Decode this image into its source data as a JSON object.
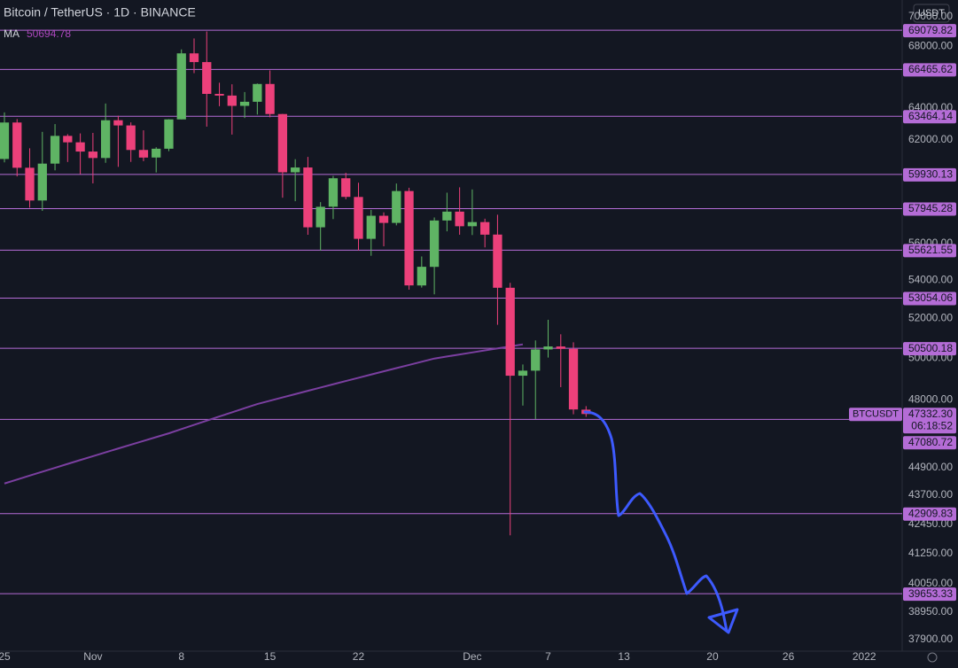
{
  "chart_data": {
    "type": "candlestick",
    "title": "Bitcoin / TetherUS · 1D · BINANCE",
    "symbol": "BTCUSDT",
    "currency": "USDT",
    "countdown": "06:18:52",
    "log_scale": true,
    "up_color": "#5fb464",
    "down_color": "#ec407a",
    "open": [
      60852,
      63078,
      60328,
      58413,
      60575,
      62253,
      61859,
      61299,
      60911,
      63220,
      62896,
      61395,
      60940,
      61470,
      63273,
      67525,
      66947,
      64882,
      64775,
      64122,
      64380,
      65519,
      63606,
      60058,
      60344,
      56891,
      58057,
      59707,
      58617,
      56247,
      57541,
      57138,
      58960,
      53723,
      54716,
      57274,
      57777,
      56951,
      57184,
      56485,
      53601,
      49153,
      49397,
      50441,
      50589,
      50471,
      47535
    ],
    "high": [
      63710,
      63293,
      61496,
      62499,
      62980,
      62359,
      62405,
      62437,
      64270,
      63500,
      63086,
      62595,
      61560,
      63286,
      67789,
      68524,
      69000,
      65600,
      65500,
      65000,
      65550,
      66401,
      63617,
      60840,
      60976,
      58320,
      59845,
      60029,
      59444,
      57875,
      57735,
      59398,
      59150,
      55280,
      57445,
      58865,
      59176,
      59053,
      57375,
      57600,
      53859,
      49699,
      50891,
      51936,
      51200,
      50797,
      47700
    ],
    "low": [
      60650,
      59817,
      58000,
      57820,
      60174,
      60673,
      59945,
      59405,
      60624,
      60382,
      60677,
      60721,
      60050,
      61322,
      63273,
      66222,
      62822,
      64100,
      62333,
      63360,
      63576,
      63400,
      58574,
      58373,
      56474,
      55600,
      57353,
      58486,
      55610,
      55317,
      55837,
      57000,
      53500,
      53610,
      53256,
      56666,
      56476,
      56459,
      55777,
      51680,
      42000,
      47727,
      47100,
      50039,
      48600,
      47320,
      47200
    ],
    "close": [
      63078,
      60328,
      58413,
      60575,
      62253,
      61859,
      61299,
      60911,
      63219,
      62896,
      61395,
      60937,
      61470,
      63273,
      67525,
      66947,
      64882,
      64774,
      64122,
      64380,
      65519,
      63606,
      60058,
      60344,
      56891,
      58052,
      59707,
      58622,
      56247,
      57541,
      57138,
      58960,
      53726,
      54721,
      57274,
      57776,
      56950,
      57184,
      56480,
      53601,
      49152,
      49397,
      50441,
      50589,
      50471,
      47545,
      47332.3
    ],
    "value_labels": {
      "last_close": "47332.30"
    },
    "ma": {
      "name": "MA",
      "color": "#7b3fa0",
      "label_color": "#ab47bc",
      "values": [
        44200,
        44372,
        44545,
        44717,
        44889,
        45062,
        45234,
        45406,
        45578,
        45751,
        45923,
        46095,
        46268,
        46440,
        46634,
        46829,
        47023,
        47217,
        47411,
        47606,
        47800,
        47956,
        48113,
        48269,
        48426,
        48582,
        48739,
        48895,
        49051,
        49208,
        49364,
        49521,
        49677,
        49834,
        49990,
        50091,
        50192,
        50292,
        50393,
        50494,
        50594,
        50694.78,
        null,
        null,
        null,
        null,
        null
      ]
    },
    "levels": [
      69079.82,
      66465.62,
      63464.14,
      59930.13,
      57945.28,
      55621.55,
      53054.06,
      50500.18,
      47080.72,
      42909.83,
      39653.33
    ],
    "level_color": "#b46cd6",
    "xlim": [
      -0.35,
      71
    ],
    "xticks": [
      {
        "value": 0,
        "label": "25"
      },
      {
        "value": 7,
        "label": "Nov"
      },
      {
        "value": 14,
        "label": "8"
      },
      {
        "value": 21,
        "label": "15"
      },
      {
        "value": 28,
        "label": "22"
      },
      {
        "value": 37,
        "label": "Dec"
      },
      {
        "value": 43,
        "label": "7"
      },
      {
        "value": 49,
        "label": "13"
      },
      {
        "value": 56,
        "label": "20"
      },
      {
        "value": 62,
        "label": "26"
      },
      {
        "value": 68,
        "label": "2022"
      }
    ],
    "ylim": [
      37470,
      71170
    ],
    "yticks": [
      {
        "value": 70000,
        "label": "70000.00"
      },
      {
        "value": 68000,
        "label": "68000.00"
      },
      {
        "value": 64000,
        "label": "64000.00"
      },
      {
        "value": 62000,
        "label": "62000.00"
      },
      {
        "value": 56000,
        "label": "56000.00"
      },
      {
        "value": 54000,
        "label": "54000.00"
      },
      {
        "value": 52000,
        "label": "52000.00"
      },
      {
        "value": 50000,
        "label": "50000.00"
      },
      {
        "value": 48000,
        "label": "48000.00"
      },
      {
        "value": 44900,
        "label": "44900.00"
      },
      {
        "value": 43700,
        "label": "43700.00"
      },
      {
        "value": 42450,
        "label": "42450.00"
      },
      {
        "value": 41250,
        "label": "41250.00"
      },
      {
        "value": 40050,
        "label": "40050.00"
      },
      {
        "value": 38950,
        "label": "38950.00"
      },
      {
        "value": 37900,
        "label": "37900.00"
      }
    ]
  }
}
